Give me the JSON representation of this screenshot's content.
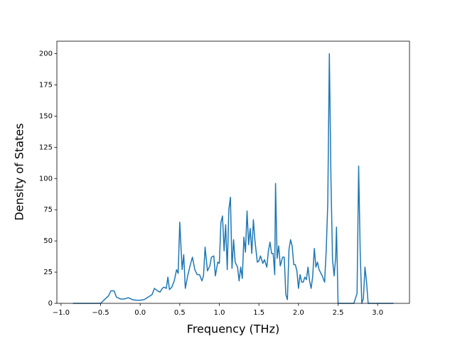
{
  "chart_data": {
    "type": "line",
    "xlabel": "Frequency (THz)",
    "ylabel": "Density of States",
    "x": [
      -0.85,
      -0.5,
      -0.45,
      -0.4,
      -0.37,
      -0.33,
      -0.3,
      -0.25,
      -0.2,
      -0.15,
      -0.1,
      -0.05,
      0,
      0.05,
      0.1,
      0.15,
      0.18,
      0.22,
      0.25,
      0.28,
      0.3,
      0.33,
      0.35,
      0.37,
      0.4,
      0.43,
      0.46,
      0.48,
      0.5,
      0.53,
      0.55,
      0.57,
      0.6,
      0.63,
      0.66,
      0.69,
      0.72,
      0.75,
      0.78,
      0.8,
      0.82,
      0.85,
      0.88,
      0.9,
      0.93,
      0.95,
      0.98,
      1.0,
      1.02,
      1.04,
      1.06,
      1.08,
      1.1,
      1.12,
      1.14,
      1.16,
      1.18,
      1.2,
      1.23,
      1.25,
      1.27,
      1.29,
      1.31,
      1.33,
      1.35,
      1.37,
      1.39,
      1.41,
      1.43,
      1.45,
      1.48,
      1.5,
      1.52,
      1.55,
      1.57,
      1.6,
      1.62,
      1.64,
      1.66,
      1.68,
      1.7,
      1.71,
      1.73,
      1.75,
      1.77,
      1.8,
      1.82,
      1.84,
      1.86,
      1.88,
      1.9,
      1.92,
      1.94,
      1.96,
      1.98,
      2.0,
      2.02,
      2.04,
      2.06,
      2.08,
      2.1,
      2.12,
      2.14,
      2.16,
      2.18,
      2.2,
      2.22,
      2.24,
      2.26,
      2.3,
      2.33,
      2.35,
      2.37,
      2.39,
      2.41,
      2.43,
      2.45,
      2.47,
      2.48,
      2.5,
      2.7,
      2.74,
      2.76,
      2.78,
      2.8,
      2.82,
      2.84,
      2.86,
      2.88,
      3.2
    ],
    "series": [
      {
        "color": "#1f77b4",
        "values": [
          0,
          0,
          3,
          6,
          10,
          10,
          5,
          3.5,
          3.5,
          4.5,
          3,
          2.5,
          2.5,
          3,
          5,
          7,
          12,
          10,
          9,
          12,
          13,
          12,
          21,
          11,
          13,
          18,
          27,
          24,
          65,
          27,
          39,
          12,
          22,
          30,
          37,
          27,
          23,
          23,
          18,
          22,
          45,
          26,
          30,
          37,
          38,
          22,
          33,
          32,
          65,
          70,
          42,
          63,
          27,
          75,
          85,
          28,
          51,
          33,
          29,
          18,
          29,
          20,
          53,
          41,
          74,
          47,
          60,
          40,
          67,
          50,
          33,
          34,
          38,
          32,
          35,
          29,
          42,
          49,
          40,
          40,
          23,
          96,
          36,
          46,
          30,
          37,
          37,
          7,
          3,
          43,
          51,
          46,
          31,
          31,
          26,
          12,
          23,
          17,
          17,
          21,
          19,
          29,
          18,
          12,
          22,
          44,
          29,
          33,
          27,
          22,
          17,
          42,
          80,
          200,
          100,
          35,
          22,
          37,
          61,
          0,
          0,
          8,
          110,
          40,
          0,
          4,
          29,
          17,
          0,
          0
        ]
      }
    ],
    "xlim": [
      -1.0525,
      3.4025
    ],
    "xticks": [
      {
        "value": -1,
        "label": "−1.0"
      },
      {
        "value": -0.5,
        "label": "−0.5"
      },
      {
        "value": 0,
        "label": "0.0"
      },
      {
        "value": 0.5,
        "label": "0.5"
      },
      {
        "value": 1,
        "label": "1.0"
      },
      {
        "value": 1.5,
        "label": "1.5"
      },
      {
        "value": 2,
        "label": "2.0"
      },
      {
        "value": 2.5,
        "label": "2.5"
      },
      {
        "value": 3,
        "label": "3.0"
      }
    ],
    "ylim": [
      0,
      210
    ],
    "yticks": [
      0,
      25,
      50,
      75,
      100,
      125,
      150,
      175,
      200
    ],
    "grid": false
  }
}
